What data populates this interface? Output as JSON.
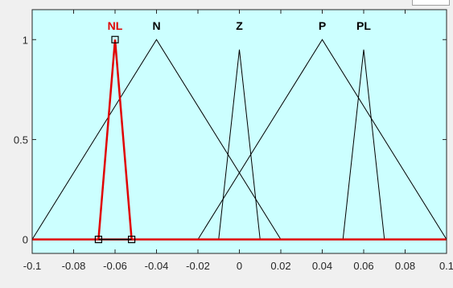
{
  "chart_data": {
    "type": "line",
    "title": "",
    "xlabel": "",
    "ylabel": "",
    "xlim": [
      -0.1,
      0.1
    ],
    "ylim": [
      -0.07,
      1.15
    ],
    "xticks": [
      -0.1,
      -0.08,
      -0.06,
      -0.04,
      -0.02,
      0,
      0.02,
      0.04,
      0.06,
      0.08,
      0.1
    ],
    "xtick_labels": [
      "-0.1",
      "-0.08",
      "-0.06",
      "-0.04",
      "-0.02",
      "0",
      "0.02",
      "0.04",
      "0.06",
      "0.08",
      "0.1"
    ],
    "yticks": [
      0,
      0.5,
      1
    ],
    "ytick_labels": [
      "0",
      "0.5",
      "1"
    ],
    "grid": false,
    "background_color": "#ccffff",
    "highlight_color": "#e00000",
    "series": [
      {
        "name": "NL",
        "selected": true,
        "x": [
          -0.068,
          -0.06,
          -0.052
        ],
        "y": [
          0,
          1,
          0
        ]
      },
      {
        "name": "N",
        "selected": false,
        "x": [
          -0.1,
          -0.04,
          0.02
        ],
        "y": [
          0,
          1,
          0
        ]
      },
      {
        "name": "Z",
        "selected": false,
        "x": [
          -0.01,
          0,
          0.01
        ],
        "y": [
          0,
          0.95,
          0
        ]
      },
      {
        "name": "P",
        "selected": false,
        "x": [
          -0.02,
          0.04,
          0.1
        ],
        "y": [
          0,
          1,
          0
        ]
      },
      {
        "name": "PL",
        "selected": false,
        "x": [
          0.05,
          0.06,
          0.07
        ],
        "y": [
          0,
          0.95,
          0
        ]
      }
    ]
  }
}
